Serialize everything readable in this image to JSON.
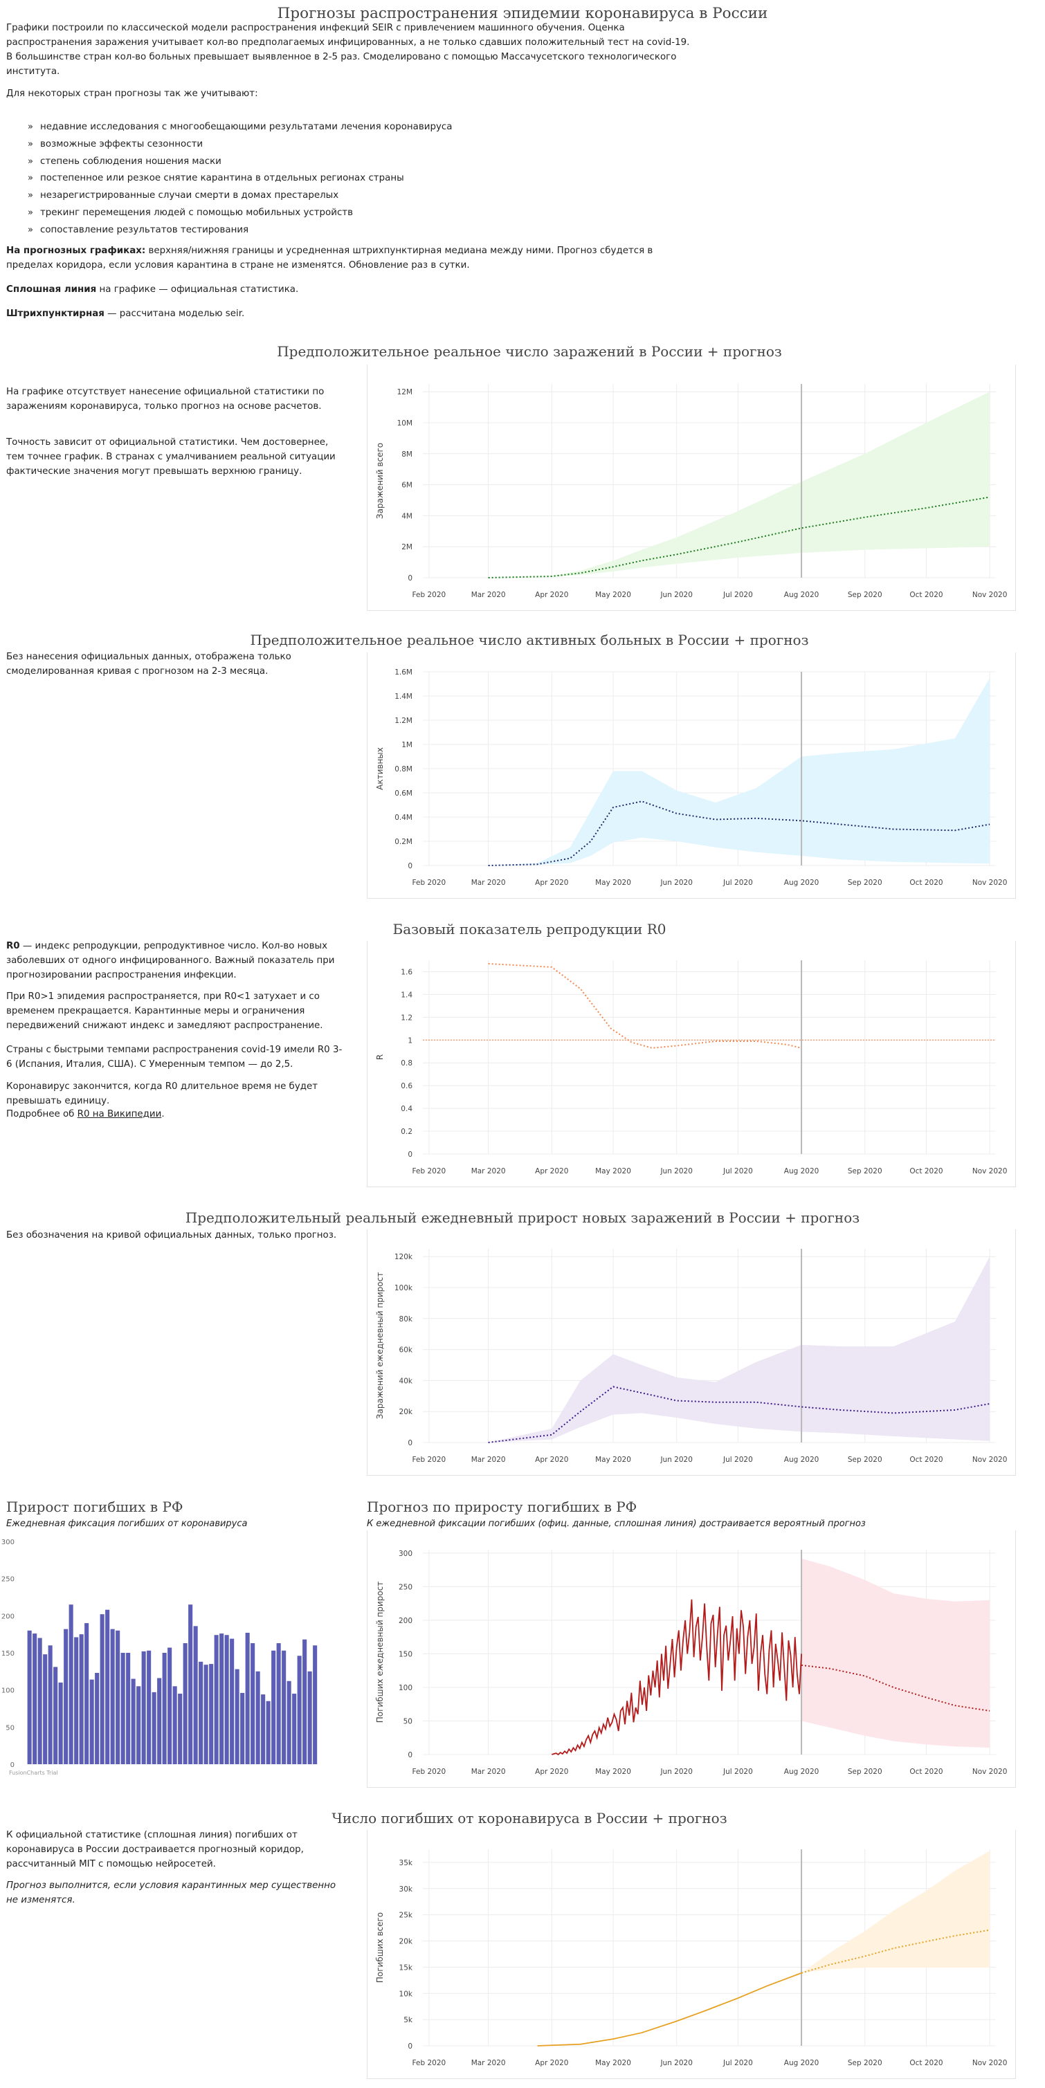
{
  "page_title": "Прогнозы распространения эпидемии коронавируса в России",
  "intro": "Графики построили по классической модели распространения инфекций SEIR с привлечением машинного обучения. Оценка распространения заражения учитывает кол-во предполагаемых инфицированных, а не только сдавших положительный тест на covid-19. В большинстве стран кол-во больных превышает выявленное в 2-5 раз. Смоделировано с помощью Массачусетского технологического института.",
  "intro2": "Для некоторых стран прогнозы так же учитывают:",
  "factors": [
    "недавние исследования с многообещающими результатами лечения коронавируса",
    "возможные эффекты сезонности",
    "степень соблюдения ношения маски",
    "постепенное или резкое снятие карантина в отдельных регионах страны",
    "незарегистрированные случаи смерти в домах престарелых",
    "трекинг перемещения людей с помощью мобильных устройств",
    "сопоставление результатов тестирования"
  ],
  "note1_bold": "На прогнозных графиках:",
  "note1": " верхняя/нижняя границы и усредненная штрихпунктирная медиана между ними. Прогноз сбудется в пределах коридора, если условия карантина в стране не изменятся. Обновление раз в сутки.",
  "note2_bold": "Сплошная линия",
  "note2": " на графике — официальная статистика.",
  "note3_bold": "Штрихпунктирная",
  "note3": " — рассчитана моделью seir.",
  "x_ticks": [
    "Feb 2020",
    "Mar 2020",
    "Apr 2020",
    "May 2020",
    "Jun 2020",
    "Jul 2020",
    "Aug 2020",
    "Sep 2020",
    "Oct 2020",
    "Nov 2020"
  ],
  "sec1": {
    "title": "Предположительное реальное число заражений в России + прогноз",
    "text1": "На графике отсутствует нанесение официальной статистики по заражениям коронавируса, только прогноз на основе расчетов.",
    "text2": "Точность зависит от официальной статистики. Чем достовернее, тем точнее график. В странах с умалчиванием реальной ситуации фактические значения могут превышать верхнюю границу."
  },
  "sec2": {
    "title": "Предположительное реальное число активных больных в России + прогноз",
    "text1": "Без нанесения официальных данных, отображена только смоделированная кривая с прогнозом на 2-3 месяца."
  },
  "sec3": {
    "title": "Базовый показатель репродукции R0",
    "b1": "R0",
    "t1": " — индекс репродукции, репродуктивное число. Кол-во новых заболевших от одного инфицированного. Важный показатель при прогнозировании распространения инфекции.",
    "t2": "При R0>1 эпидемия распространяется, при R0<1 затухает и со временем прекращается. Карантинные меры и ограничения передвижений снижают индекс и замедляют распространение.",
    "t3": "Страны с быстрыми темпами распространения covid-19 имели R0 3-6 (Испания, Италия, США). С Умеренным темпом — до 2,5.",
    "t4": "Коронавирус закончится, когда R0 длительное время не будет превышать единицу.",
    "t5a": "Подробнее об ",
    "t5link": "R0 на Википедии",
    "t5b": "."
  },
  "sec4": {
    "title": "Предположительный реальный ежедневный прирост новых заражений в России + прогноз",
    "text1": "Без обозначения на кривой официальных данных, только прогноз."
  },
  "sec5": {
    "title": "Прирост погибших в РФ",
    "subtitle": "Ежедневная фиксация погибших от коронавируса",
    "credit": "FusionCharts Trial"
  },
  "sec6": {
    "title": "Прогноз по приросту погибших в РФ",
    "subtitle": "К ежедневной фиксации погибших (офиц. данные, сплошная линия) достраивается вероятный прогноз"
  },
  "sec7": {
    "title": "Число погибших от коронавируса в России + прогноз",
    "text1": "К официальной статистике (сплошная линия) погибших от коронавируса в России достраивается прогнозный коридор, рассчитанный MIT с помощью нейросетей.",
    "text2": "Прогноз выполнится, если условия карантинных мер существенно не изменятся."
  },
  "chart_data": [
    {
      "type": "area",
      "title": "Предположительное реальное число заражений в России + прогноз",
      "ylabel": "Заражений всего",
      "ylim": [
        0,
        12500000
      ],
      "yticks": [
        "0",
        "2M",
        "4M",
        "6M",
        "8M",
        "10M",
        "12M"
      ],
      "ytick_values": [
        0,
        2000000,
        4000000,
        6000000,
        8000000,
        10000000,
        12000000
      ],
      "color": "#1a7a1a",
      "band_color": "#e9f9e6",
      "x": [
        "2020-03-01",
        "2020-04-01",
        "2020-04-15",
        "2020-05-01",
        "2020-05-15",
        "2020-06-01",
        "2020-07-01",
        "2020-08-01",
        "2020-09-01",
        "2020-10-01",
        "2020-11-01"
      ],
      "median": [
        0,
        90000,
        300000,
        700000,
        1100000,
        1500000,
        2300000,
        3200000,
        3900000,
        4500000,
        5200000
      ],
      "upper": [
        0,
        120000,
        450000,
        1100000,
        1800000,
        2600000,
        4300000,
        6200000,
        8000000,
        10000000,
        12000000
      ],
      "lower": [
        0,
        60000,
        180000,
        400000,
        650000,
        900000,
        1300000,
        1600000,
        1800000,
        1900000,
        2000000
      ],
      "vline": "2020-08-01"
    },
    {
      "type": "area",
      "title": "Предположительное реальное число активных больных в России + прогноз",
      "ylabel": "Активных",
      "ylim": [
        0,
        1600000
      ],
      "yticks": [
        "0",
        "0.2M",
        "0.4M",
        "0.6M",
        "0.8M",
        "1M",
        "1.2M",
        "1.4M",
        "1.6M"
      ],
      "ytick_values": [
        0,
        200000,
        400000,
        600000,
        800000,
        1000000,
        1200000,
        1400000,
        1600000
      ],
      "color": "#1c2a6e",
      "band_color": "#e0f5fe",
      "x": [
        "2020-03-01",
        "2020-03-25",
        "2020-04-10",
        "2020-04-20",
        "2020-05-01",
        "2020-05-15",
        "2020-06-01",
        "2020-06-20",
        "2020-07-10",
        "2020-08-01",
        "2020-08-20",
        "2020-09-15",
        "2020-10-15",
        "2020-11-01"
      ],
      "median": [
        0,
        10000,
        60000,
        200000,
        480000,
        530000,
        430000,
        380000,
        390000,
        370000,
        340000,
        300000,
        290000,
        340000
      ],
      "upper": [
        0,
        20000,
        150000,
        450000,
        780000,
        780000,
        620000,
        520000,
        640000,
        900000,
        930000,
        960000,
        1050000,
        1550000
      ],
      "lower": [
        0,
        5000,
        20000,
        80000,
        190000,
        230000,
        200000,
        150000,
        110000,
        80000,
        50000,
        30000,
        20000,
        15000
      ],
      "vline": "2020-08-01"
    },
    {
      "type": "line",
      "title": "Базовый показатель репродукции R0",
      "ylabel": "R",
      "ylim": [
        0,
        1.7
      ],
      "yticks": [
        "0",
        "0.2",
        "0.4",
        "0.6",
        "0.8",
        "1",
        "1.2",
        "1.4",
        "1.6"
      ],
      "ytick_values": [
        0,
        0.2,
        0.4,
        0.6,
        0.8,
        1,
        1.2,
        1.4,
        1.6
      ],
      "color": "#f4884e",
      "x": [
        "2020-03-01",
        "2020-04-01",
        "2020-04-15",
        "2020-04-30",
        "2020-05-10",
        "2020-05-20",
        "2020-06-01",
        "2020-06-20",
        "2020-07-10",
        "2020-07-25",
        "2020-08-01"
      ],
      "median": [
        1.67,
        1.64,
        1.45,
        1.1,
        0.98,
        0.93,
        0.95,
        0.99,
        0.99,
        0.96,
        0.93
      ],
      "hline": 1,
      "vline": "2020-08-01"
    },
    {
      "type": "area",
      "title": "Предположительный реальный ежедневный прирост новых заражений в России + прогноз",
      "ylabel": "Заражений ежедневный прирост",
      "ylim": [
        0,
        125000
      ],
      "yticks": [
        "0",
        "20k",
        "40k",
        "60k",
        "80k",
        "100k",
        "120k"
      ],
      "ytick_values": [
        0,
        20000,
        40000,
        60000,
        80000,
        100000,
        120000
      ],
      "color": "#3d1a8a",
      "band_color": "#ece6f5",
      "x": [
        "2020-03-01",
        "2020-04-01",
        "2020-04-15",
        "2020-05-01",
        "2020-05-15",
        "2020-06-01",
        "2020-06-20",
        "2020-07-10",
        "2020-08-01",
        "2020-08-20",
        "2020-09-15",
        "2020-10-15",
        "2020-11-01"
      ],
      "median": [
        0,
        5000,
        20000,
        36000,
        32000,
        27000,
        26000,
        26000,
        23000,
        21000,
        19000,
        21000,
        25000
      ],
      "upper": [
        0,
        9000,
        40000,
        57000,
        50000,
        42000,
        39000,
        52000,
        63000,
        62000,
        62000,
        78000,
        120000
      ],
      "lower": [
        0,
        2000,
        10000,
        18000,
        19000,
        16000,
        12000,
        9000,
        7000,
        6000,
        4000,
        2000,
        1000
      ],
      "vline": "2020-08-01"
    },
    {
      "type": "bar",
      "title": "Прирост погибших в РФ",
      "ylim": [
        0,
        300
      ],
      "yticks": [
        "0",
        "50",
        "100",
        "150",
        "200",
        "250",
        "300"
      ],
      "ytick_values": [
        0,
        50,
        100,
        150,
        200,
        250,
        300
      ],
      "color": "#5c5eb5",
      "values": [
        180,
        176,
        170,
        148,
        160,
        131,
        110,
        182,
        215,
        171,
        175,
        190,
        114,
        123,
        202,
        208,
        182,
        180,
        150,
        150,
        115,
        105,
        152,
        153,
        97,
        116,
        150,
        157,
        105,
        95,
        163,
        215,
        186,
        138,
        134,
        135,
        174,
        176,
        174,
        169,
        128,
        96,
        177,
        163,
        125,
        94,
        85,
        153,
        163,
        153,
        112,
        95,
        146,
        168,
        125,
        160
      ]
    },
    {
      "type": "line",
      "title": "Прогноз по приросту погибших в РФ",
      "ylabel": "Погибших ежедневный прирост",
      "ylim": [
        0,
        305
      ],
      "yticks": [
        "0",
        "50",
        "100",
        "150",
        "200",
        "250",
        "300"
      ],
      "ytick_values": [
        0,
        50,
        100,
        150,
        200,
        250,
        300
      ],
      "color": "#b31b1b",
      "band_color": "#fde6ea",
      "official_x_start": "2020-04-01",
      "official_x_end": "2020-08-01",
      "official": [
        0,
        1,
        2,
        0,
        3,
        1,
        5,
        2,
        8,
        4,
        10,
        6,
        14,
        9,
        18,
        12,
        22,
        28,
        18,
        30,
        35,
        25,
        40,
        32,
        45,
        38,
        55,
        42,
        48,
        60,
        52,
        35,
        65,
        70,
        45,
        80,
        58,
        92,
        48,
        70,
        60,
        110,
        74,
        100,
        65,
        118,
        88,
        125,
        100,
        140,
        85,
        150,
        110,
        162,
        98,
        135,
        172,
        115,
        160,
        185,
        125,
        170,
        200,
        150,
        182,
        231,
        145,
        190,
        205,
        140,
        175,
        225,
        160,
        110,
        195,
        208,
        130,
        180,
        220,
        95,
        178,
        192,
        140,
        170,
        206,
        110,
        188,
        150,
        215,
        190,
        120,
        175,
        200,
        135,
        160,
        210,
        95,
        150,
        178,
        120,
        90,
        155,
        185,
        100,
        165,
        140,
        110,
        182,
        130,
        80,
        170,
        148,
        100,
        175,
        120,
        90,
        150
      ],
      "forecast_x": [
        "2020-08-01",
        "2020-08-15",
        "2020-09-01",
        "2020-09-15",
        "2020-10-01",
        "2020-10-15",
        "2020-11-01"
      ],
      "forecast": [
        133,
        128,
        117,
        100,
        85,
        73,
        65
      ],
      "forecast_upper": [
        292,
        280,
        260,
        240,
        232,
        228,
        230
      ],
      "forecast_lower": [
        50,
        40,
        28,
        20,
        15,
        12,
        10
      ],
      "vline": "2020-08-01"
    },
    {
      "type": "area",
      "title": "Число погибших от коронавируса в России + прогноз",
      "ylabel": "Погибших всего",
      "ylim": [
        0,
        37500
      ],
      "yticks": [
        "0",
        "5k",
        "10k",
        "15k",
        "20k",
        "25k",
        "30k",
        "35k"
      ],
      "ytick_values": [
        0,
        5000,
        10000,
        15000,
        20000,
        25000,
        30000,
        35000
      ],
      "color": "#e8a020",
      "band_color": "#fff3e0",
      "official_x": [
        "2020-03-25",
        "2020-04-15",
        "2020-05-01",
        "2020-05-15",
        "2020-06-01",
        "2020-06-15",
        "2020-07-01",
        "2020-07-15",
        "2020-08-01"
      ],
      "official": [
        0,
        300,
        1300,
        2500,
        4700,
        6700,
        9100,
        11400,
        13900
      ],
      "forecast_x": [
        "2020-08-01",
        "2020-08-15",
        "2020-09-01",
        "2020-09-15",
        "2020-10-01",
        "2020-10-15",
        "2020-11-01"
      ],
      "forecast": [
        13900,
        15500,
        17100,
        18600,
        19900,
        21000,
        22100
      ],
      "forecast_upper": [
        13900,
        17800,
        21900,
        25800,
        29600,
        33400,
        37200
      ],
      "forecast_lower": [
        13900,
        14600,
        14900,
        14900,
        14900,
        14900,
        14900
      ],
      "vline": "2020-08-01"
    }
  ]
}
